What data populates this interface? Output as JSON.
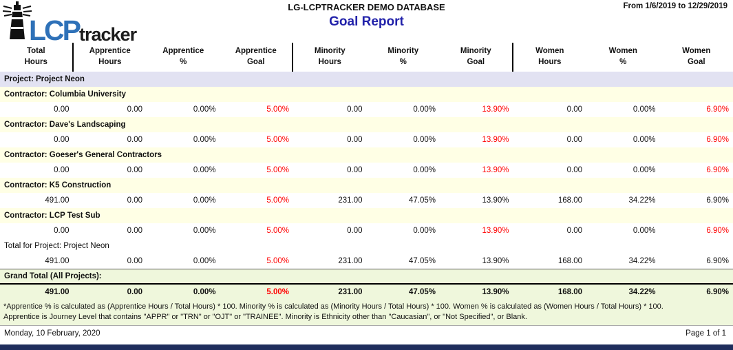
{
  "header": {
    "logo": {
      "lcp": "LCP",
      "tracker": "tracker",
      "icon": "lighthouse-icon"
    },
    "database_title": "LG-LCPTRACKER DEMO DATABASE",
    "report_title": "Goal Report",
    "date_range": "From 1/6/2019 to 12/29/2019"
  },
  "colors": {
    "logo_blue": "#2E71B8",
    "title_navy": "#2222AA",
    "goal_unmet_red": "#FF0000",
    "project_row_bg": "#E2E2F2",
    "contractor_row_bg": "#FFFFE5",
    "grand_total_bg": "#EFF7DC",
    "bottom_bar_navy": "#1F2D5C"
  },
  "table": {
    "columns": [
      {
        "line1": "Total",
        "line2": "Hours"
      },
      {
        "line1": "Apprentice",
        "line2": "Hours"
      },
      {
        "line1": "Apprentice",
        "line2": "%"
      },
      {
        "line1": "Apprentice",
        "line2": "Goal"
      },
      {
        "line1": "Minority",
        "line2": "Hours"
      },
      {
        "line1": "Minority",
        "line2": "%"
      },
      {
        "line1": "Minority",
        "line2": "Goal"
      },
      {
        "line1": "Women",
        "line2": "Hours"
      },
      {
        "line1": "Women",
        "line2": "%"
      },
      {
        "line1": "Women",
        "line2": "Goal"
      }
    ],
    "rows": [
      {
        "type": "project",
        "label": "Project: Project Neon"
      },
      {
        "type": "contractor",
        "label": "Contractor: Columbia University"
      },
      {
        "type": "data",
        "values": [
          "0.00",
          "0.00",
          "0.00%",
          "5.00%",
          "0.00",
          "0.00%",
          "13.90%",
          "0.00",
          "0.00%",
          "6.90%"
        ],
        "red": [
          3,
          6,
          9
        ]
      },
      {
        "type": "contractor",
        "label": "Contractor: Dave's Landscaping"
      },
      {
        "type": "data",
        "values": [
          "0.00",
          "0.00",
          "0.00%",
          "5.00%",
          "0.00",
          "0.00%",
          "13.90%",
          "0.00",
          "0.00%",
          "6.90%"
        ],
        "red": [
          3,
          6,
          9
        ]
      },
      {
        "type": "contractor",
        "label": "Contractor: Goeser's General Contractors"
      },
      {
        "type": "data",
        "values": [
          "0.00",
          "0.00",
          "0.00%",
          "5.00%",
          "0.00",
          "0.00%",
          "13.90%",
          "0.00",
          "0.00%",
          "6.90%"
        ],
        "red": [
          3,
          6,
          9
        ]
      },
      {
        "type": "contractor",
        "label": "Contractor: K5 Construction"
      },
      {
        "type": "data",
        "values": [
          "491.00",
          "0.00",
          "0.00%",
          "5.00%",
          "231.00",
          "47.05%",
          "13.90%",
          "168.00",
          "34.22%",
          "6.90%"
        ],
        "red": [
          3
        ]
      },
      {
        "type": "contractor",
        "label": "Contractor: LCP Test Sub"
      },
      {
        "type": "data",
        "values": [
          "0.00",
          "0.00",
          "0.00%",
          "5.00%",
          "0.00",
          "0.00%",
          "13.90%",
          "0.00",
          "0.00%",
          "6.90%"
        ],
        "red": [
          3,
          6,
          9
        ]
      },
      {
        "type": "project-total",
        "label": "Total for Project: Project Neon"
      },
      {
        "type": "data",
        "values": [
          "491.00",
          "0.00",
          "0.00%",
          "5.00%",
          "231.00",
          "47.05%",
          "13.90%",
          "168.00",
          "34.22%",
          "6.90%"
        ],
        "red": [
          3
        ]
      },
      {
        "type": "grand-label",
        "label": "Grand Total (All Projects):"
      },
      {
        "type": "grand-data",
        "values": [
          "491.00",
          "0.00",
          "0.00%",
          "5.00%",
          "231.00",
          "47.05%",
          "13.90%",
          "168.00",
          "34.22%",
          "6.90%"
        ],
        "red": [
          3
        ]
      }
    ]
  },
  "footnote": {
    "line1": "*Apprentice % is calculated as (Apprentice Hours / Total Hours) * 100. Minority % is calculated as (Minority Hours / Total Hours) * 100. Women % is calculated as (Women Hours / Total Hours) * 100.",
    "line2": "Apprentice is Journey Level that contains \"APPR\" or \"TRN\" or \"OJT\" or \"TRAINEE\". Minority is Ethnicity other than \"Caucasian\", or \"Not Specified\", or Blank."
  },
  "footer": {
    "date": "Monday, 10 February, 2020",
    "page": "Page 1 of 1"
  }
}
